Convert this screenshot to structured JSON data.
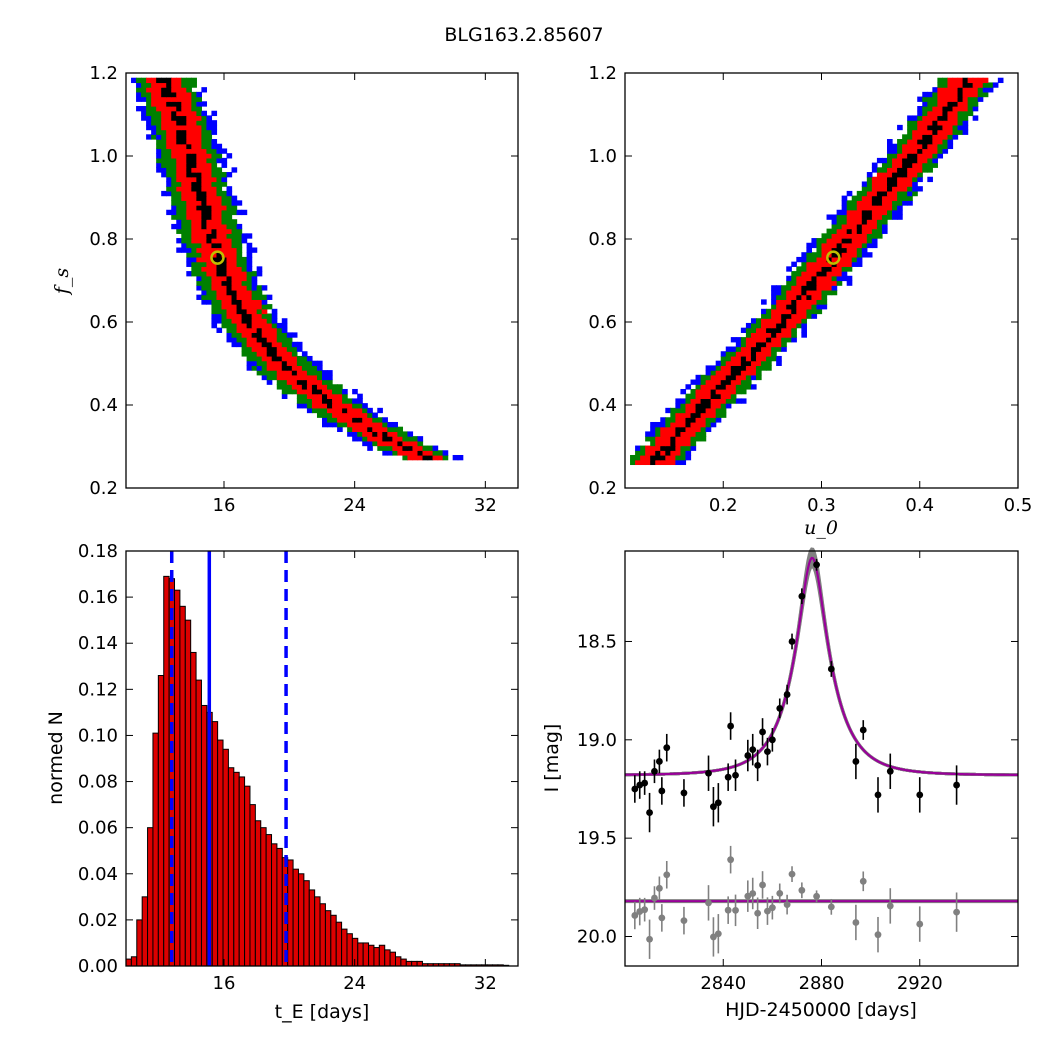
{
  "figure_title": "BLG163.2.85607",
  "colors": {
    "sigma1": "#ff0000",
    "sigma2": "#008000",
    "sigma3": "#0000ff",
    "core": "#000000",
    "best_marker": "#bfbf00",
    "hist_fill": "#dd0000",
    "hist_lines": "#0000ff",
    "model": "#990099",
    "model_band": "#808080",
    "residual": "#808080"
  },
  "chart_data": [
    {
      "type": "heatmap",
      "panel": "tE-fs",
      "xlabel": "",
      "ylabel": "f_s",
      "xlim": [
        10,
        34
      ],
      "ylim": [
        0.2,
        1.2
      ],
      "xticks": [
        "16",
        "24",
        "32"
      ],
      "yticks": [
        "0.2",
        "0.4",
        "0.6",
        "0.8",
        "1.0",
        "1.2"
      ],
      "best_fit": {
        "x": 15.6,
        "y": 0.755
      },
      "ridge": [
        [
          12.2,
          1.19
        ],
        [
          13.3,
          1.08
        ],
        [
          14.0,
          0.98
        ],
        [
          15.0,
          0.84
        ],
        [
          16.0,
          0.71
        ],
        [
          17.5,
          0.6
        ],
        [
          20.0,
          0.48
        ],
        [
          23.0,
          0.39
        ],
        [
          26.0,
          0.32
        ],
        [
          28.5,
          0.27
        ]
      ],
      "half_widths_x": {
        "core": 0.35,
        "sigma1": 1.1,
        "sigma2": 1.7,
        "sigma3": 2.1
      },
      "y_range": [
        0.27,
        1.19
      ]
    },
    {
      "type": "heatmap",
      "panel": "u0-fs",
      "xlabel": "u_0",
      "ylabel": "",
      "xlim": [
        0.1,
        0.5
      ],
      "ylim": [
        0.2,
        1.2
      ],
      "xticks": [
        "0.2",
        "0.3",
        "0.4",
        "0.5"
      ],
      "yticks": [
        "0.2",
        "0.4",
        "0.6",
        "0.8",
        "1.0",
        "1.2"
      ],
      "best_fit": {
        "x": 0.312,
        "y": 0.755
      },
      "ridge": [
        [
          0.128,
          0.26
        ],
        [
          0.2,
          0.45
        ],
        [
          0.26,
          0.6
        ],
        [
          0.312,
          0.755
        ],
        [
          0.36,
          0.9
        ],
        [
          0.41,
          1.05
        ],
        [
          0.45,
          1.19
        ]
      ],
      "half_widths_x": {
        "core": 0.006,
        "sigma1": 0.018,
        "sigma2": 0.026,
        "sigma3": 0.032
      },
      "y_range": [
        0.26,
        1.19
      ]
    },
    {
      "type": "bar",
      "panel": "tE-histogram",
      "xlabel": "t_E [days]",
      "ylabel": "normed N",
      "xlim": [
        10,
        34
      ],
      "ylim": [
        0,
        0.18
      ],
      "xticks": [
        "16",
        "24",
        "32"
      ],
      "yticks": [
        "0.00",
        "0.02",
        "0.04",
        "0.06",
        "0.08",
        "0.10",
        "0.12",
        "0.14",
        "0.16",
        "0.18"
      ],
      "bin_start": 10.0,
      "bin_width": 0.33,
      "values": [
        0.003,
        0.004,
        0.02,
        0.03,
        0.06,
        0.101,
        0.126,
        0.169,
        0.168,
        0.163,
        0.156,
        0.15,
        0.136,
        0.124,
        0.113,
        0.11,
        0.106,
        0.098,
        0.094,
        0.086,
        0.084,
        0.082,
        0.078,
        0.07,
        0.063,
        0.06,
        0.057,
        0.053,
        0.051,
        0.047,
        0.046,
        0.042,
        0.04,
        0.037,
        0.033,
        0.03,
        0.027,
        0.024,
        0.022,
        0.019,
        0.016,
        0.014,
        0.012,
        0.01,
        0.01,
        0.009,
        0.008,
        0.009,
        0.007,
        0.006,
        0.004,
        0.003,
        0.002,
        0.002,
        0.002,
        0.001,
        0.001,
        0.001,
        0.001,
        0.001,
        0.001,
        0.001,
        0.0005,
        0.0005,
        0.0005,
        0.0005,
        0.0005,
        0.0005,
        0.0005,
        0.0005,
        0.0003
      ],
      "vlines": [
        {
          "x": 12.8,
          "style": "dashed"
        },
        {
          "x": 15.1,
          "style": "solid"
        },
        {
          "x": 19.8,
          "style": "dashed"
        }
      ]
    },
    {
      "type": "scatter",
      "panel": "light-curve",
      "xlabel": "HJD-2450000 [days]",
      "ylabel": "I [mag]",
      "xlim": [
        2800,
        2960
      ],
      "ylim": [
        20.15,
        18.04
      ],
      "xticks": [
        "2840",
        "2880",
        "2920"
      ],
      "yticks": [
        "18.5",
        "19.0",
        "19.5",
        "20.0"
      ],
      "model": {
        "t0": 2876.2,
        "tE": 15.6,
        "u0": 0.31,
        "fs": 0.755,
        "base": 19.18
      },
      "residual_offset": 19.82,
      "points": [
        {
          "t": 2804,
          "m": 19.25,
          "e": 0.07
        },
        {
          "t": 2806,
          "m": 19.23,
          "e": 0.07
        },
        {
          "t": 2808,
          "m": 19.22,
          "e": 0.06
        },
        {
          "t": 2810,
          "m": 19.37,
          "e": 0.1
        },
        {
          "t": 2812,
          "m": 19.16,
          "e": 0.06
        },
        {
          "t": 2814,
          "m": 19.11,
          "e": 0.06
        },
        {
          "t": 2815,
          "m": 19.26,
          "e": 0.07
        },
        {
          "t": 2817,
          "m": 19.04,
          "e": 0.07
        },
        {
          "t": 2824,
          "m": 19.27,
          "e": 0.07
        },
        {
          "t": 2834,
          "m": 19.17,
          "e": 0.09
        },
        {
          "t": 2836,
          "m": 19.34,
          "e": 0.1
        },
        {
          "t": 2838,
          "m": 19.32,
          "e": 0.1
        },
        {
          "t": 2842,
          "m": 19.19,
          "e": 0.07
        },
        {
          "t": 2843,
          "m": 18.93,
          "e": 0.07
        },
        {
          "t": 2845,
          "m": 19.18,
          "e": 0.08
        },
        {
          "t": 2850,
          "m": 19.08,
          "e": 0.08
        },
        {
          "t": 2852,
          "m": 19.05,
          "e": 0.08
        },
        {
          "t": 2854,
          "m": 19.13,
          "e": 0.08
        },
        {
          "t": 2856,
          "m": 18.96,
          "e": 0.07
        },
        {
          "t": 2858,
          "m": 19.06,
          "e": 0.07
        },
        {
          "t": 2860,
          "m": 19.0,
          "e": 0.06
        },
        {
          "t": 2863,
          "m": 18.84,
          "e": 0.05
        },
        {
          "t": 2866,
          "m": 18.77,
          "e": 0.05
        },
        {
          "t": 2868,
          "m": 18.5,
          "e": 0.04
        },
        {
          "t": 2872,
          "m": 18.27,
          "e": 0.04
        },
        {
          "t": 2878,
          "m": 18.11,
          "e": 0.03
        },
        {
          "t": 2884,
          "m": 18.64,
          "e": 0.04
        },
        {
          "t": 2894,
          "m": 19.11,
          "e": 0.09
        },
        {
          "t": 2897,
          "m": 18.95,
          "e": 0.05
        },
        {
          "t": 2903,
          "m": 19.28,
          "e": 0.09
        },
        {
          "t": 2908,
          "m": 19.16,
          "e": 0.09
        },
        {
          "t": 2920,
          "m": 19.28,
          "e": 0.09
        },
        {
          "t": 2935,
          "m": 19.23,
          "e": 0.1
        }
      ]
    }
  ]
}
